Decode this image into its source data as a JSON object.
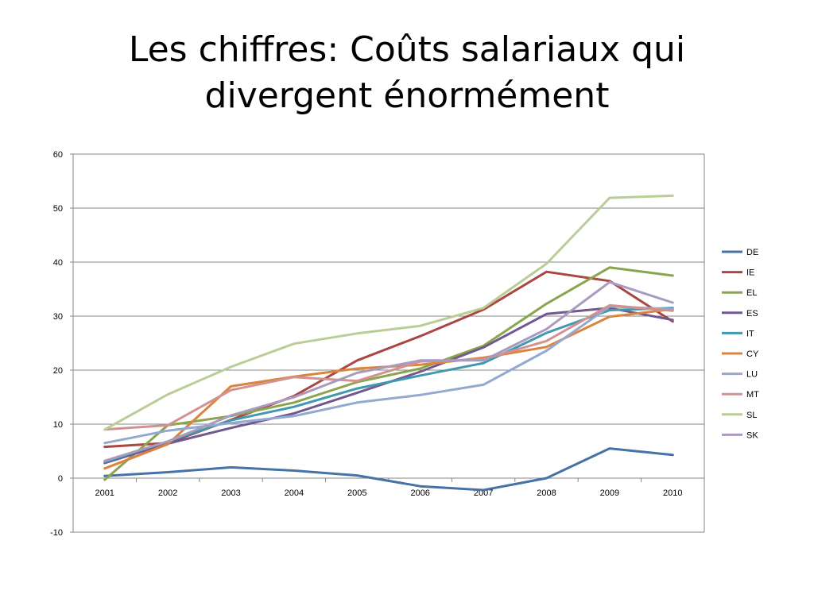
{
  "slide": {
    "title_line1": "Les chiffres: Coûts salariaux qui",
    "title_line2": "divergent énormément"
  },
  "chart_data": {
    "type": "line",
    "title": "",
    "xlabel": "",
    "ylabel": "",
    "x": [
      "2001",
      "2002",
      "2003",
      "2004",
      "2005",
      "2006",
      "2007",
      "2008",
      "2009",
      "2010"
    ],
    "ylim": [
      -10,
      60
    ],
    "yticks": [
      -10,
      0,
      10,
      20,
      30,
      40,
      50,
      60
    ],
    "grid": "horizontal",
    "legend": "right",
    "series": [
      {
        "name": "DE",
        "color": "#4572a7",
        "values": [
          0.4,
          1.1,
          2.0,
          1.4,
          0.5,
          -1.5,
          -2.2,
          0.0,
          5.5,
          4.3
        ]
      },
      {
        "name": "IE",
        "color": "#aa4643",
        "values": [
          5.8,
          6.5,
          10.8,
          15.2,
          21.8,
          26.3,
          31.2,
          38.2,
          36.5,
          29.0
        ]
      },
      {
        "name": "EL",
        "color": "#89a54e",
        "values": [
          -0.3,
          9.8,
          11.5,
          14.0,
          17.8,
          20.3,
          24.5,
          32.3,
          39.0,
          37.5
        ]
      },
      {
        "name": "ES",
        "color": "#71588f",
        "values": [
          2.8,
          6.4,
          9.3,
          12.0,
          15.8,
          19.7,
          24.2,
          30.4,
          31.5,
          29.3
        ]
      },
      {
        "name": "IT",
        "color": "#4198af",
        "values": [
          3.0,
          6.8,
          10.7,
          13.2,
          16.6,
          19.0,
          21.3,
          26.9,
          31.1,
          31.5
        ]
      },
      {
        "name": "CY",
        "color": "#db843d",
        "values": [
          1.8,
          6.3,
          17.0,
          18.8,
          20.3,
          21.0,
          22.3,
          24.3,
          29.9,
          31.3
        ]
      },
      {
        "name": "LU",
        "color": "#93a9cf",
        "values": [
          6.5,
          8.8,
          10.2,
          11.5,
          14.0,
          15.4,
          17.3,
          23.6,
          31.8,
          31.3
        ]
      },
      {
        "name": "MT",
        "color": "#d19392",
        "values": [
          9.0,
          9.8,
          16.3,
          18.7,
          18.0,
          21.6,
          22.0,
          25.4,
          32.0,
          31.0
        ]
      },
      {
        "name": "SL",
        "color": "#b9cd96",
        "values": [
          9.0,
          15.5,
          20.6,
          24.9,
          26.8,
          28.2,
          31.5,
          39.7,
          51.9,
          52.3
        ]
      },
      {
        "name": "SK",
        "color": "#a99bbd",
        "values": [
          3.2,
          6.8,
          11.6,
          15.0,
          19.5,
          21.8,
          21.8,
          27.6,
          36.3,
          32.5
        ]
      }
    ]
  }
}
